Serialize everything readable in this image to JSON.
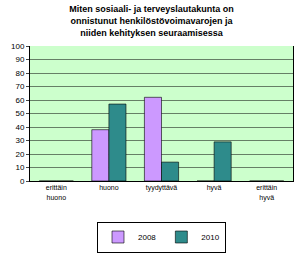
{
  "chart_data": {
    "type": "bar",
    "title": "Miten sosiaali- ja terveyslautakunta on onnistunut henkilöstövoimavarojen ja niiden kehityksen seuraamisessa",
    "categories": [
      "erittäin huono",
      "huono",
      "tyydyttävä",
      "hyvä",
      "erittäin hyvä"
    ],
    "series": [
      {
        "name": "2008",
        "color": "#cc99ff",
        "values": [
          0,
          38,
          62,
          0,
          0
        ]
      },
      {
        "name": "2010",
        "color": "#2e8b8b",
        "values": [
          0,
          57,
          14,
          29,
          0
        ]
      }
    ],
    "ylim": [
      0,
      100
    ],
    "yticks": [
      0,
      10,
      20,
      30,
      40,
      50,
      60,
      70,
      80,
      90,
      100
    ],
    "grid": true,
    "legend": "bottom"
  }
}
